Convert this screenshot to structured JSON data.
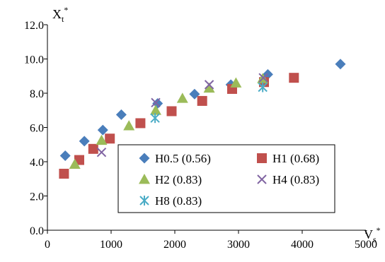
{
  "chart_data": {
    "type": "scatter",
    "xlabel": "Vs*",
    "ylabel": "Xt*",
    "xlim": [
      0,
      5000
    ],
    "ylim": [
      0,
      12
    ],
    "x_ticks": [
      "0",
      "1000",
      "2000",
      "3000",
      "4000",
      "5000"
    ],
    "y_ticks": [
      "0.0",
      "2.0",
      "4.0",
      "6.0",
      "8.0",
      "10.0",
      "12.0"
    ],
    "grid": false,
    "legend_position": "bottom-right",
    "series": [
      {
        "name": "H0.5 (0.56)",
        "marker": "diamond",
        "color": "#4a7ebb",
        "points": [
          [
            280,
            4.35
          ],
          [
            580,
            5.2
          ],
          [
            870,
            5.85
          ],
          [
            1160,
            6.75
          ],
          [
            1730,
            7.4
          ],
          [
            2310,
            7.95
          ],
          [
            2880,
            8.5
          ],
          [
            3460,
            9.1
          ],
          [
            4600,
            9.7
          ]
        ]
      },
      {
        "name": "H1 (0.68)",
        "marker": "square",
        "color": "#c0504d",
        "points": [
          [
            260,
            3.3
          ],
          [
            500,
            4.1
          ],
          [
            720,
            4.75
          ],
          [
            980,
            5.35
          ],
          [
            1460,
            6.25
          ],
          [
            1950,
            6.95
          ],
          [
            2430,
            7.55
          ],
          [
            2900,
            8.25
          ],
          [
            3400,
            8.65
          ],
          [
            3870,
            8.9
          ]
        ]
      },
      {
        "name": "H2 (0.83)",
        "marker": "triangle",
        "color": "#9bbb59",
        "points": [
          [
            430,
            3.85
          ],
          [
            850,
            5.25
          ],
          [
            1280,
            6.1
          ],
          [
            1700,
            7.0
          ],
          [
            2120,
            7.7
          ],
          [
            2540,
            8.3
          ],
          [
            2960,
            8.6
          ],
          [
            3380,
            8.85
          ]
        ]
      },
      {
        "name": "H4 (0.83)",
        "marker": "x",
        "color": "#8064a2",
        "points": [
          [
            850,
            4.55
          ],
          [
            1700,
            7.45
          ],
          [
            2540,
            8.5
          ],
          [
            3390,
            8.9
          ]
        ]
      },
      {
        "name": "H8 (0.83)",
        "marker": "asterisk",
        "color": "#4bacc6",
        "points": [
          [
            1690,
            6.55
          ],
          [
            3380,
            8.35
          ]
        ]
      }
    ]
  }
}
